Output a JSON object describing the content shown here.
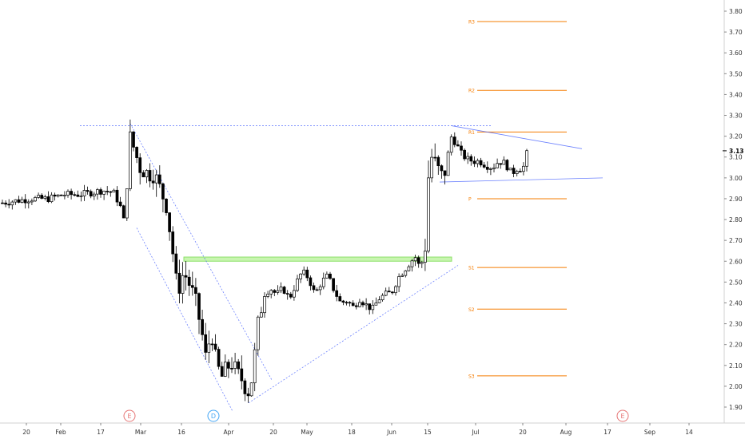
{
  "chart_data": {
    "type": "candlestick",
    "y_axis": {
      "ticks": [
        "3.80",
        "3.70",
        "3.60",
        "3.50",
        "3.40",
        "3.30",
        "3.20",
        "3.10",
        "3.00",
        "2.90",
        "2.80",
        "2.70",
        "2.60",
        "2.50",
        "2.40",
        "2.30",
        "2.20",
        "2.10",
        "2.00",
        "1.90"
      ],
      "min": 1.85,
      "max": 3.85,
      "current_price": "3.13"
    },
    "x_axis": {
      "ticks": [
        "20",
        "Feb",
        "17",
        "Mar",
        "16",
        "Apr",
        "20",
        "May",
        "18",
        "Jun",
        "15",
        "Jul",
        "20",
        "Aug",
        "17",
        "Sep",
        "14"
      ]
    },
    "event_markers": [
      {
        "label": "E",
        "position": "Mar",
        "color": "#e57373"
      },
      {
        "label": "D",
        "position": "Mar 30",
        "color": "#42a5f5"
      },
      {
        "label": "E",
        "position": "Aug 24",
        "color": "#e57373"
      }
    ],
    "pivot_levels": [
      {
        "label": "R3",
        "value": 3.75
      },
      {
        "label": "R2",
        "value": 3.42
      },
      {
        "label": "R1",
        "value": 3.22
      },
      {
        "label": "P",
        "value": 2.9
      },
      {
        "label": "S1",
        "value": 2.57
      },
      {
        "label": "S2",
        "value": 2.37
      },
      {
        "label": "S3",
        "value": 2.05
      }
    ],
    "support_zone": {
      "low": 2.6,
      "high": 2.62
    },
    "colors": {
      "pivot": "#f57c00",
      "trendline": "#3d5afe",
      "support_zone_fill": "#c8f5b0",
      "support_zone_stroke": "#8ee06a",
      "candle": "#000000",
      "axis_text": "#333333",
      "axis_border": "#d0d0d0"
    }
  }
}
